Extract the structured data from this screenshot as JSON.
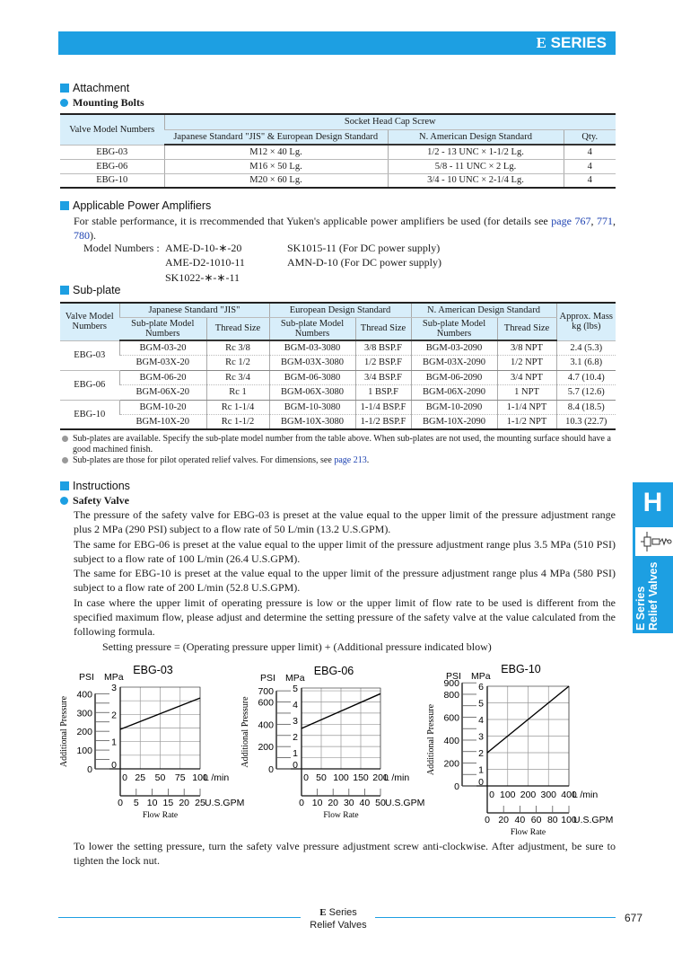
{
  "header": {
    "series_logo": "E",
    "title": "SERIES",
    "color": "#1d9fe2"
  },
  "attachment": {
    "heading": "Attachment",
    "sub_heading": "Mounting Bolts",
    "table": {
      "col_valve": "Valve Model Numbers",
      "group": "Socket Head Cap Screw",
      "col_jis": "Japanese Standard \"JIS\" & European Design Standard",
      "col_na": "N. American Design Standard",
      "col_qty": "Qty.",
      "rows": [
        [
          "EBG-03",
          "M12 × 40 Lg.",
          "1/2 - 13 UNC × 1-1/2 Lg.",
          "4"
        ],
        [
          "EBG-06",
          "M16 × 50 Lg.",
          "5/8 - 11 UNC × 2 Lg.",
          "4"
        ],
        [
          "EBG-10",
          "M20 × 60 Lg.",
          "3/4 - 10 UNC × 2-1/4 Lg.",
          "4"
        ]
      ]
    }
  },
  "amplifiers": {
    "heading": "Applicable Power Amplifiers",
    "text": "For stable performance, it is rrecommended that Yuken's applicable power amplifiers be used (for details see ",
    "link1": "page 767",
    "sep1": ", ",
    "link2": "771",
    "sep2": ", ",
    "link3": "780",
    "tail": ").",
    "model_label": "Model Numbers :",
    "models_col1": [
      "AME-D-10-∗-20",
      "AME-D2-1010-11",
      "SK1022-∗-∗-11"
    ],
    "models_col2": [
      "SK1015-11 (For DC power supply)",
      "AMN-D-10 (For DC power supply)"
    ]
  },
  "subplate": {
    "heading": "Sub-plate",
    "headers": {
      "valve": "Valve Model Numbers",
      "jis": "Japanese Standard \"JIS\"",
      "eu": "European Design Standard",
      "na": "N. American Design Standard",
      "mass": "Approx. Mass kg (lbs)",
      "model": "Sub-plate Model Numbers",
      "thread": "Thread Size"
    },
    "groups": [
      {
        "valve": "EBG-03",
        "rows": [
          [
            "BGM-03-20",
            "Rc 3/8",
            "BGM-03-3080",
            "3/8 BSP.F",
            "BGM-03-2090",
            "3/8 NPT",
            "2.4 (5.3)"
          ],
          [
            "BGM-03X-20",
            "Rc 1/2",
            "BGM-03X-3080",
            "1/2 BSP.F",
            "BGM-03X-2090",
            "1/2 NPT",
            "3.1 (6.8)"
          ]
        ]
      },
      {
        "valve": "EBG-06",
        "rows": [
          [
            "BGM-06-20",
            "Rc 3/4",
            "BGM-06-3080",
            "3/4 BSP.F",
            "BGM-06-2090",
            "3/4 NPT",
            "4.7 (10.4)"
          ],
          [
            "BGM-06X-20",
            "Rc 1",
            "BGM-06X-3080",
            "1 BSP.F",
            "BGM-06X-2090",
            "1 NPT",
            "5.7 (12.6)"
          ]
        ]
      },
      {
        "valve": "EBG-10",
        "rows": [
          [
            "BGM-10-20",
            "Rc 1-1/4",
            "BGM-10-3080",
            "1-1/4 BSP.F",
            "BGM-10-2090",
            "1-1/4 NPT",
            "8.4 (18.5)"
          ],
          [
            "BGM-10X-20",
            "Rc 1-1/2",
            "BGM-10X-3080",
            "1-1/2 BSP.F",
            "BGM-10X-2090",
            "1-1/2 NPT",
            "10.3 (22.7)"
          ]
        ]
      }
    ],
    "note1": "Sub-plates are available.  Specify the sub-plate model number from the table above.  When sub-plates are not used, the mounting surface should have a good machined finish.",
    "note2": "Sub-plates are those for pilot operated relief valves.  For dimensions, see ",
    "note2_link": "page 213",
    "note2_tail": "."
  },
  "instructions": {
    "heading": "Instructions",
    "sub_heading": "Safety Valve",
    "paragraphs": [
      "The pressure of the safety valve for EBG-03 is preset at the value equal to the upper limit of the pressure adjustment range plus 2 MPa (290 PSI) subject to a flow rate of 50 L/min (13.2 U.S.GPM).",
      "The same for EBG-06 is preset at the value equal to the upper limit of the pressure adjustment range plus 3.5 MPa (510 PSI) subject to a flow rate of 100 L/min (26.4 U.S.GPM).",
      "The same for EBG-10 is preset at the value equal to the upper limit of the pressure adjustment range plus 4 MPa (580 PSI) subject to a flow rate of 200 L/min (52.8 U.S.GPM).",
      "In case where the upper limit of operating pressure is low or the upper limit of flow rate to be used is different from the specified maximum flow, please adjust and determine the setting pressure of the safety valve at the value calculated from the following formula."
    ],
    "formula": "Setting pressure = (Operating pressure upper limit) + (Additional pressure indicated blow)",
    "closing": "To lower the setting pressure, turn the safety valve pressure adjustment screw anti-clockwise.  After adjustment, be sure to tighten the lock nut."
  },
  "chart_data": [
    {
      "type": "line",
      "title": "EBG-03",
      "ylabel": "Additional Pressure",
      "xlabel": "Flow Rate",
      "y_unit": "MPa",
      "y2_unit": "PSI",
      "x_unit": "L /min",
      "x2_unit": "U.S.GPM",
      "ylim": [
        0,
        3
      ],
      "xlim": [
        0,
        100
      ],
      "y_ticks": [
        0,
        1,
        2,
        3
      ],
      "psi_ticks": [
        0,
        100,
        200,
        300,
        400
      ],
      "x_ticks": [
        0,
        25,
        50,
        75,
        100
      ],
      "gpm_ticks": [
        0,
        5,
        10,
        15,
        20,
        25
      ],
      "grid": true,
      "x": [
        0,
        100
      ],
      "y": [
        1.45,
        2.6
      ]
    },
    {
      "type": "line",
      "title": "EBG-06",
      "ylabel": "Additional Pressure",
      "xlabel": "Flow Rate",
      "y_unit": "MPa",
      "y2_unit": "PSI",
      "x_unit": "L /min",
      "x2_unit": "U.S.GPM",
      "ylim": [
        0,
        5
      ],
      "xlim": [
        0,
        200
      ],
      "y_ticks": [
        0,
        1,
        2,
        3,
        4,
        5
      ],
      "psi_ticks": [
        0,
        200,
        400,
        600,
        700
      ],
      "x_ticks": [
        0,
        50,
        100,
        150,
        200
      ],
      "gpm_ticks": [
        0,
        10,
        20,
        30,
        40,
        50
      ],
      "grid": true,
      "x": [
        0,
        200
      ],
      "y": [
        2.5,
        4.65
      ]
    },
    {
      "type": "line",
      "title": "EBG-10",
      "ylabel": "Additional Pressure",
      "xlabel": "Flow Rate",
      "y_unit": "MPa",
      "y2_unit": "PSI",
      "x_unit": "L /min",
      "x2_unit": "U.S.GPM",
      "ylim": [
        0,
        6
      ],
      "xlim": [
        0,
        400
      ],
      "y_ticks": [
        0,
        1,
        2,
        3,
        4,
        5,
        6
      ],
      "psi_ticks": [
        0,
        200,
        400,
        600,
        800,
        900
      ],
      "x_ticks": [
        0,
        100,
        200,
        300,
        400
      ],
      "gpm_ticks": [
        0,
        20,
        40,
        60,
        80,
        100
      ],
      "grid": true,
      "x": [
        0,
        400
      ],
      "y": [
        2,
        6
      ]
    }
  ],
  "side_tab": {
    "letter": "H",
    "line1": "E Series",
    "line2": "Relief Valves",
    "symbol": "relief-valve-symbol"
  },
  "footer": {
    "logo": "E",
    "series": "Series",
    "subtitle": "Relief Valves",
    "page": "677"
  }
}
